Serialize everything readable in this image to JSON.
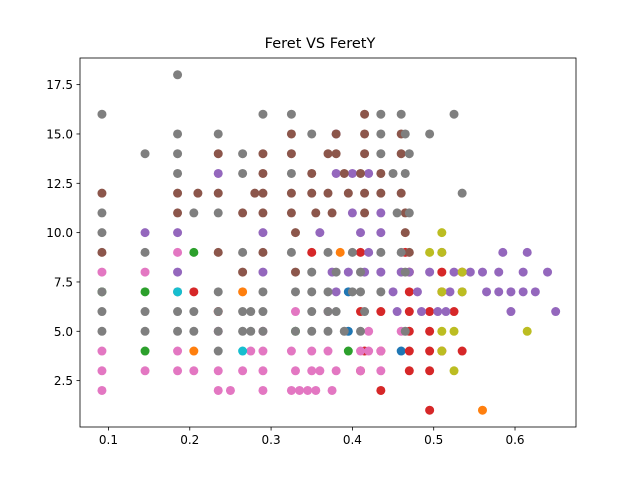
{
  "chart_data": {
    "type": "scatter",
    "title": "Feret VS FeretY",
    "xlabel": "",
    "ylabel": "",
    "xlim": [
      0.065,
      0.675
    ],
    "ylim": [
      0.15,
      18.85
    ],
    "xticks": [
      0.1,
      0.2,
      0.3,
      0.4,
      0.5,
      0.6
    ],
    "xtick_labels": [
      "0.1",
      "0.2",
      "0.3",
      "0.4",
      "0.5",
      "0.6"
    ],
    "yticks": [
      2.5,
      5.0,
      7.5,
      10.0,
      12.5,
      15.0,
      17.5
    ],
    "ytick_labels": [
      "2.5",
      "5.0",
      "7.5",
      "10.0",
      "12.5",
      "15.0",
      "17.5"
    ],
    "grid": false,
    "legend": "none",
    "colors": {
      "blue": "#1f77b4",
      "orange": "#ff7f0e",
      "green": "#2ca02c",
      "red": "#d62728",
      "purple": "#9467bd",
      "brown": "#8c564b",
      "pink": "#e377c2",
      "gray": "#7f7f7f",
      "olive": "#bcbd22",
      "cyan": "#17becf"
    },
    "series": [
      {
        "color": "blue",
        "points": [
          [
            0.395,
            7
          ],
          [
            0.395,
            5
          ],
          [
            0.46,
            4
          ]
        ]
      },
      {
        "color": "orange",
        "points": [
          [
            0.205,
            4
          ],
          [
            0.265,
            7
          ],
          [
            0.385,
            9
          ],
          [
            0.56,
            1
          ]
        ]
      },
      {
        "color": "green",
        "points": [
          [
            0.092,
            7
          ],
          [
            0.145,
            7
          ],
          [
            0.145,
            4
          ],
          [
            0.205,
            9
          ],
          [
            0.33,
            5
          ],
          [
            0.395,
            4
          ]
        ]
      },
      {
        "color": "red",
        "points": [
          [
            0.205,
            7
          ],
          [
            0.235,
            6
          ],
          [
            0.35,
            9
          ],
          [
            0.41,
            9
          ],
          [
            0.41,
            6
          ],
          [
            0.41,
            3
          ],
          [
            0.415,
            4
          ],
          [
            0.435,
            2
          ],
          [
            0.435,
            4
          ],
          [
            0.435,
            6
          ],
          [
            0.465,
            9
          ],
          [
            0.47,
            8
          ],
          [
            0.47,
            7
          ],
          [
            0.47,
            6
          ],
          [
            0.47,
            5
          ],
          [
            0.47,
            4
          ],
          [
            0.47,
            3
          ],
          [
            0.495,
            1
          ],
          [
            0.495,
            3
          ],
          [
            0.495,
            4
          ],
          [
            0.495,
            5
          ],
          [
            0.495,
            6
          ],
          [
            0.51,
            7
          ],
          [
            0.51,
            8
          ],
          [
            0.51,
            4
          ],
          [
            0.525,
            6
          ],
          [
            0.535,
            8
          ],
          [
            0.535,
            4
          ]
        ]
      },
      {
        "color": "purple",
        "points": [
          [
            0.145,
            10
          ],
          [
            0.185,
            10
          ],
          [
            0.185,
            8
          ],
          [
            0.235,
            13
          ],
          [
            0.29,
            10
          ],
          [
            0.29,
            8
          ],
          [
            0.36,
            10
          ],
          [
            0.375,
            8
          ],
          [
            0.38,
            15
          ],
          [
            0.38,
            13
          ],
          [
            0.38,
            7
          ],
          [
            0.395,
            8
          ],
          [
            0.4,
            13
          ],
          [
            0.4,
            11
          ],
          [
            0.41,
            10
          ],
          [
            0.415,
            8
          ],
          [
            0.42,
            13
          ],
          [
            0.42,
            9
          ],
          [
            0.435,
            8
          ],
          [
            0.435,
            11
          ],
          [
            0.435,
            10
          ],
          [
            0.45,
            7
          ],
          [
            0.455,
            6
          ],
          [
            0.46,
            8
          ],
          [
            0.47,
            8
          ],
          [
            0.48,
            7
          ],
          [
            0.485,
            6
          ],
          [
            0.495,
            8
          ],
          [
            0.505,
            6
          ],
          [
            0.51,
            9
          ],
          [
            0.515,
            6
          ],
          [
            0.52,
            7
          ],
          [
            0.525,
            8
          ],
          [
            0.535,
            7
          ],
          [
            0.545,
            8
          ],
          [
            0.56,
            8
          ],
          [
            0.565,
            7
          ],
          [
            0.58,
            8
          ],
          [
            0.58,
            7
          ],
          [
            0.585,
            9
          ],
          [
            0.595,
            7
          ],
          [
            0.595,
            6
          ],
          [
            0.61,
            7
          ],
          [
            0.61,
            8
          ],
          [
            0.615,
            9
          ],
          [
            0.625,
            7
          ],
          [
            0.64,
            8
          ],
          [
            0.65,
            6
          ]
        ]
      },
      {
        "color": "brown",
        "points": [
          [
            0.092,
            12
          ],
          [
            0.092,
            9
          ],
          [
            0.185,
            12
          ],
          [
            0.185,
            11
          ],
          [
            0.21,
            12
          ],
          [
            0.235,
            14
          ],
          [
            0.235,
            12
          ],
          [
            0.235,
            9
          ],
          [
            0.265,
            11
          ],
          [
            0.265,
            8
          ],
          [
            0.28,
            12
          ],
          [
            0.29,
            14
          ],
          [
            0.29,
            13
          ],
          [
            0.29,
            12
          ],
          [
            0.29,
            11
          ],
          [
            0.29,
            9
          ],
          [
            0.325,
            15
          ],
          [
            0.325,
            14
          ],
          [
            0.325,
            12
          ],
          [
            0.325,
            11
          ],
          [
            0.33,
            10
          ],
          [
            0.33,
            8
          ],
          [
            0.35,
            13
          ],
          [
            0.35,
            12
          ],
          [
            0.355,
            11
          ],
          [
            0.37,
            14
          ],
          [
            0.37,
            12
          ],
          [
            0.375,
            11
          ],
          [
            0.38,
            15
          ],
          [
            0.38,
            14
          ],
          [
            0.39,
            13
          ],
          [
            0.395,
            12
          ],
          [
            0.41,
            13
          ],
          [
            0.415,
            16
          ],
          [
            0.415,
            15
          ],
          [
            0.415,
            14
          ],
          [
            0.415,
            12
          ],
          [
            0.415,
            11
          ],
          [
            0.435,
            13
          ],
          [
            0.435,
            12
          ],
          [
            0.46,
            15
          ],
          [
            0.46,
            14
          ],
          [
            0.46,
            12
          ],
          [
            0.465,
            11
          ],
          [
            0.465,
            10
          ],
          [
            0.47,
            9
          ]
        ]
      },
      {
        "color": "pink",
        "points": [
          [
            0.092,
            8
          ],
          [
            0.092,
            4
          ],
          [
            0.092,
            3
          ],
          [
            0.092,
            2
          ],
          [
            0.145,
            8
          ],
          [
            0.145,
            3
          ],
          [
            0.185,
            9
          ],
          [
            0.185,
            4
          ],
          [
            0.185,
            3
          ],
          [
            0.205,
            3
          ],
          [
            0.235,
            2
          ],
          [
            0.235,
            3
          ],
          [
            0.235,
            5
          ],
          [
            0.25,
            2
          ],
          [
            0.265,
            3
          ],
          [
            0.275,
            4
          ],
          [
            0.29,
            2
          ],
          [
            0.29,
            3
          ],
          [
            0.29,
            4
          ],
          [
            0.29,
            5
          ],
          [
            0.325,
            2
          ],
          [
            0.325,
            4
          ],
          [
            0.33,
            6
          ],
          [
            0.33,
            3
          ],
          [
            0.335,
            2
          ],
          [
            0.345,
            2
          ],
          [
            0.35,
            4
          ],
          [
            0.35,
            3
          ],
          [
            0.355,
            2
          ],
          [
            0.36,
            3
          ],
          [
            0.37,
            4
          ],
          [
            0.37,
            6
          ],
          [
            0.375,
            2
          ],
          [
            0.38,
            3
          ],
          [
            0.41,
            4
          ],
          [
            0.41,
            3
          ],
          [
            0.42,
            4
          ],
          [
            0.42,
            5
          ],
          [
            0.435,
            3
          ],
          [
            0.435,
            4
          ],
          [
            0.46,
            5
          ]
        ]
      },
      {
        "color": "gray",
        "points": [
          [
            0.092,
            16
          ],
          [
            0.092,
            11
          ],
          [
            0.092,
            10
          ],
          [
            0.092,
            7
          ],
          [
            0.092,
            6
          ],
          [
            0.092,
            5
          ],
          [
            0.145,
            14
          ],
          [
            0.145,
            9
          ],
          [
            0.145,
            6
          ],
          [
            0.145,
            5
          ],
          [
            0.185,
            18
          ],
          [
            0.185,
            15
          ],
          [
            0.185,
            14
          ],
          [
            0.185,
            13
          ],
          [
            0.185,
            7
          ],
          [
            0.185,
            6
          ],
          [
            0.185,
            5
          ],
          [
            0.205,
            11
          ],
          [
            0.205,
            6
          ],
          [
            0.205,
            5
          ],
          [
            0.235,
            15
          ],
          [
            0.235,
            11
          ],
          [
            0.235,
            7
          ],
          [
            0.235,
            6
          ],
          [
            0.235,
            5
          ],
          [
            0.235,
            4
          ],
          [
            0.265,
            14
          ],
          [
            0.265,
            13
          ],
          [
            0.265,
            9
          ],
          [
            0.265,
            6
          ],
          [
            0.265,
            5
          ],
          [
            0.275,
            6
          ],
          [
            0.275,
            5
          ],
          [
            0.29,
            16
          ],
          [
            0.29,
            7
          ],
          [
            0.29,
            6
          ],
          [
            0.29,
            5
          ],
          [
            0.325,
            16
          ],
          [
            0.325,
            13
          ],
          [
            0.325,
            9
          ],
          [
            0.33,
            7
          ],
          [
            0.33,
            5
          ],
          [
            0.35,
            15
          ],
          [
            0.35,
            8
          ],
          [
            0.35,
            7
          ],
          [
            0.35,
            6
          ],
          [
            0.35,
            5
          ],
          [
            0.37,
            9
          ],
          [
            0.37,
            7
          ],
          [
            0.37,
            6
          ],
          [
            0.37,
            5
          ],
          [
            0.38,
            8
          ],
          [
            0.38,
            6
          ],
          [
            0.39,
            5
          ],
          [
            0.4,
            9
          ],
          [
            0.4,
            7
          ],
          [
            0.41,
            8
          ],
          [
            0.41,
            7
          ],
          [
            0.41,
            5
          ],
          [
            0.415,
            6
          ],
          [
            0.435,
            16
          ],
          [
            0.435,
            15
          ],
          [
            0.435,
            14
          ],
          [
            0.435,
            9
          ],
          [
            0.435,
            7
          ],
          [
            0.45,
            13
          ],
          [
            0.455,
            11
          ],
          [
            0.46,
            16
          ],
          [
            0.46,
            9
          ],
          [
            0.465,
            15
          ],
          [
            0.465,
            13
          ],
          [
            0.465,
            8
          ],
          [
            0.465,
            5
          ],
          [
            0.47,
            14
          ],
          [
            0.47,
            11
          ],
          [
            0.495,
            15
          ],
          [
            0.525,
            16
          ],
          [
            0.535,
            12
          ]
        ]
      },
      {
        "color": "olive",
        "points": [
          [
            0.495,
            9
          ],
          [
            0.51,
            10
          ],
          [
            0.51,
            9
          ],
          [
            0.51,
            7
          ],
          [
            0.51,
            5
          ],
          [
            0.51,
            4
          ],
          [
            0.525,
            5
          ],
          [
            0.525,
            3
          ],
          [
            0.535,
            7
          ],
          [
            0.535,
            8
          ],
          [
            0.615,
            5
          ]
        ]
      },
      {
        "color": "cyan",
        "points": [
          [
            0.185,
            7
          ],
          [
            0.265,
            4
          ]
        ]
      }
    ]
  }
}
